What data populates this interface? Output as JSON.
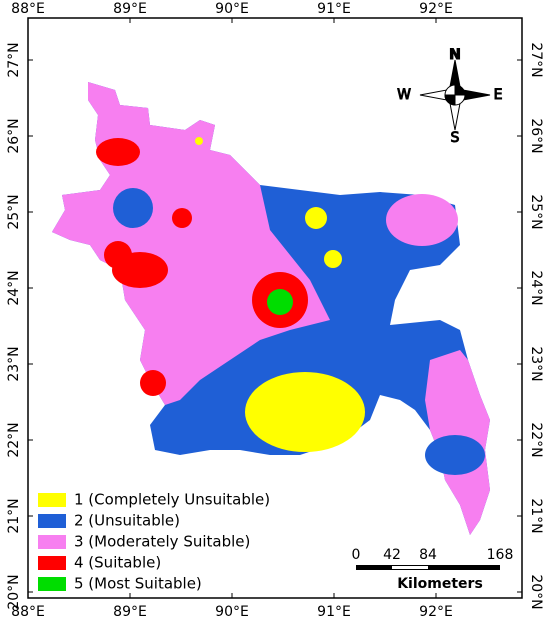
{
  "map": {
    "lon_labels": [
      "88°E",
      "89°E",
      "90°E",
      "91°E",
      "92°E"
    ],
    "lat_labels": [
      "27°N",
      "26°N",
      "25°N",
      "24°N",
      "23°N",
      "22°N",
      "21°N",
      "20°N"
    ],
    "compass": {
      "n": "N",
      "s": "S",
      "e": "E",
      "w": "W"
    },
    "legend": [
      {
        "label": "1 (Completely Unsuitable)",
        "color": "#ffff00"
      },
      {
        "label": "2 (Unsuitable)",
        "color": "#1f5fd6"
      },
      {
        "label": "3 (Moderately Suitable)",
        "color": "#f77ff0"
      },
      {
        "label": "4 (Suitable)",
        "color": "#ff0000"
      },
      {
        "label": "5 (Most Suitable)",
        "color": "#00dd00"
      }
    ],
    "scale": {
      "ticks": [
        0,
        42,
        84,
        168
      ],
      "unit": "Kilometers"
    }
  }
}
